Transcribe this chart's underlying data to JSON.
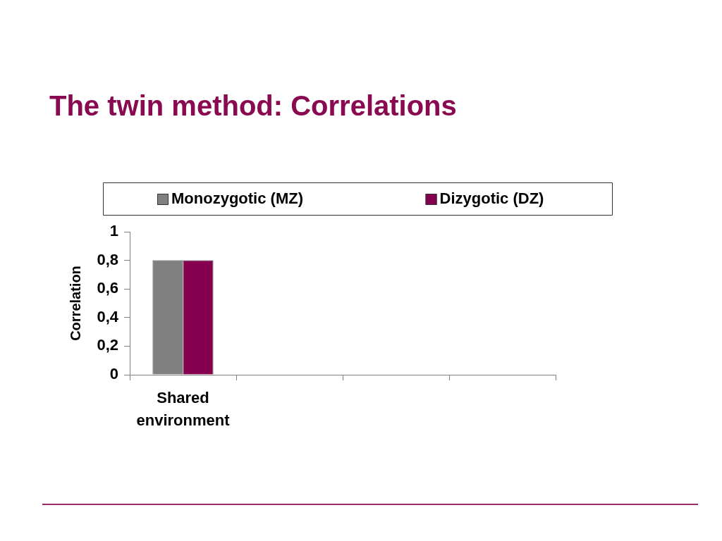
{
  "chart_data": {
    "type": "bar",
    "title": "The twin method: Correlations",
    "categories": [
      "Shared environment",
      null,
      null,
      null
    ],
    "series": [
      {
        "name": "Monozygotic (MZ)",
        "color": "#808080",
        "values": [
          0.8,
          null,
          null,
          null
        ]
      },
      {
        "name": "Dizygotic (DZ)",
        "color": "#85004f",
        "values": [
          0.8,
          null,
          null,
          null
        ]
      }
    ],
    "ylabel": "Correlation",
    "ylim": [
      0,
      1
    ],
    "yticks": [
      0,
      {
        "value": 0.2,
        "label": "0,2"
      },
      {
        "value": 0.4,
        "label": "0,4"
      },
      {
        "value": 0.6,
        "label": "0,6"
      },
      {
        "value": 0.8,
        "label": "0,8"
      },
      1
    ],
    "legend": "top",
    "grid": false
  }
}
